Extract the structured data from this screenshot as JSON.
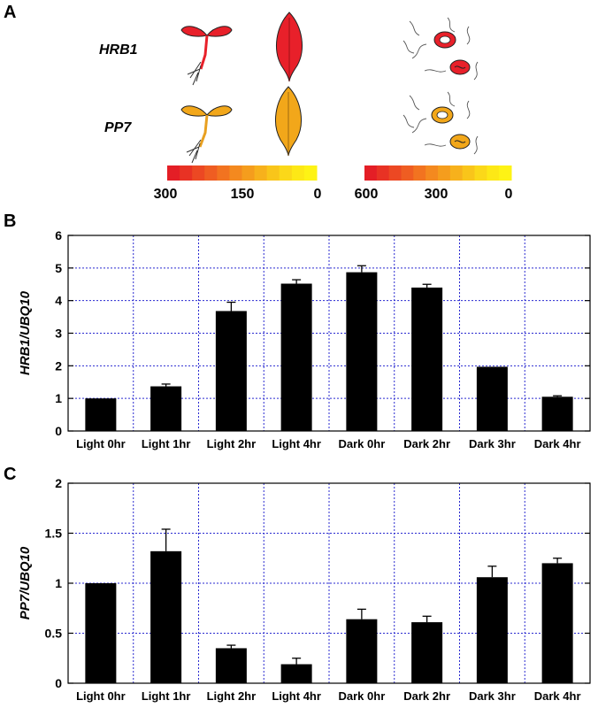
{
  "panel_a": {
    "letter": "A",
    "genes": [
      {
        "name": "HRB1",
        "color": "#e8202a"
      },
      {
        "name": "PP7",
        "color": "#f2a71a"
      }
    ],
    "scales": [
      {
        "ticks": [
          "300",
          "150",
          "0"
        ]
      },
      {
        "ticks": [
          "600",
          "300",
          "0"
        ]
      }
    ],
    "gradient_colors": [
      "#e41e26",
      "#e83224",
      "#ec4823",
      "#ef5d22",
      "#f27320",
      "#f4891f",
      "#f59d1d",
      "#f7b11c",
      "#f9c51a",
      "#fbd819",
      "#fde816",
      "#fef315"
    ]
  },
  "chart_data": [
    {
      "type": "bar",
      "letter": "B",
      "title": "",
      "xlabel": "",
      "ylabel": "HRB1/UBQ10",
      "categories": [
        "Light 0hr",
        "Light 1hr",
        "Light 2hr",
        "Light 4hr",
        "Dark 0hr",
        "Dark 2hr",
        "Dark 3hr",
        "Dark 4hr"
      ],
      "values": [
        1.0,
        1.37,
        3.68,
        4.52,
        4.87,
        4.4,
        1.97,
        1.05
      ],
      "errors": [
        0,
        0.07,
        0.27,
        0.12,
        0.2,
        0.1,
        0,
        0.03
      ],
      "ylim": [
        0,
        6
      ],
      "yticks": [
        "0",
        "1",
        "2",
        "3",
        "4",
        "5",
        "6"
      ],
      "grid": true,
      "bar_color": "#000000",
      "grid_color": "#2a2ad0"
    },
    {
      "type": "bar",
      "letter": "C",
      "title": "",
      "xlabel": "",
      "ylabel": "PP7/UBQ10",
      "categories": [
        "Light 0hr",
        "Light 1hr",
        "Light 2hr",
        "Light 4hr",
        "Dark 0hr",
        "Dark 2hr",
        "Dark 3hr",
        "Dark 4hr"
      ],
      "values": [
        1.0,
        1.32,
        0.35,
        0.19,
        0.64,
        0.61,
        1.06,
        1.2
      ],
      "errors": [
        0,
        0.22,
        0.03,
        0.06,
        0.1,
        0.06,
        0.11,
        0.05
      ],
      "ylim": [
        0,
        2
      ],
      "yticks": [
        "0",
        "0.5",
        "1",
        "1.5",
        "2"
      ],
      "grid": true,
      "bar_color": "#000000",
      "grid_color": "#2a2ad0"
    }
  ]
}
